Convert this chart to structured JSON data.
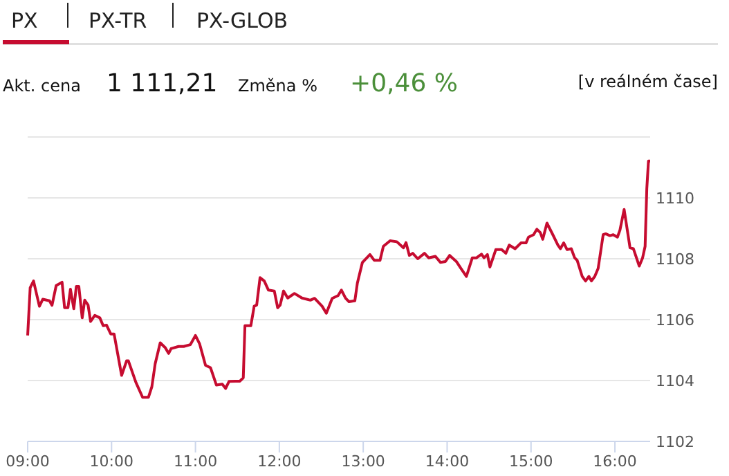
{
  "chart_data": {
    "type": "line",
    "annotations": [
      "PX",
      "PX-TR",
      "PX-GLOB",
      "Akt. cena",
      "1 111,21",
      "Změna %",
      "+0,46 %",
      "[v reálném čase]"
    ],
    "x": [
      9.0,
      9.03,
      9.07,
      9.14,
      9.18,
      9.26,
      9.29,
      9.34,
      9.41,
      9.44,
      9.48,
      9.51,
      9.55,
      9.58,
      9.61,
      9.65,
      9.68,
      9.72,
      9.75,
      9.8,
      9.86,
      9.9,
      9.94,
      9.99,
      10.03,
      10.12,
      10.18,
      10.2,
      10.29,
      10.37,
      10.44,
      10.48,
      10.52,
      10.58,
      10.64,
      10.68,
      10.71,
      10.8,
      10.86,
      10.94,
      11.0,
      11.05,
      11.12,
      11.18,
      11.25,
      11.32,
      11.36,
      11.4,
      11.48,
      11.53,
      11.57,
      11.59,
      11.66,
      11.7,
      11.73,
      11.77,
      11.82,
      11.87,
      11.94,
      11.98,
      12.01,
      12.05,
      12.1,
      12.18,
      12.27,
      12.37,
      12.42,
      12.51,
      12.56,
      12.63,
      12.7,
      12.74,
      12.79,
      12.83,
      12.9,
      12.93,
      12.99,
      13.08,
      13.13,
      13.2,
      13.24,
      13.32,
      13.4,
      13.48,
      13.51,
      13.55,
      13.59,
      13.65,
      13.73,
      13.78,
      13.86,
      13.92,
      13.98,
      14.03,
      14.11,
      14.16,
      14.23,
      14.3,
      14.35,
      14.41,
      14.44,
      14.48,
      14.51,
      14.58,
      14.65,
      14.7,
      14.74,
      14.81,
      14.88,
      14.94,
      14.97,
      15.03,
      15.07,
      15.11,
      15.14,
      15.19,
      15.26,
      15.32,
      15.35,
      15.39,
      15.43,
      15.48,
      15.52,
      15.55,
      15.61,
      15.65,
      15.69,
      15.72,
      15.76,
      15.8,
      15.86,
      15.89,
      15.94,
      15.98,
      16.03,
      16.06,
      16.11,
      16.18,
      16.22,
      16.29,
      16.33,
      16.36,
      16.38,
      16.4,
      16.42
    ],
    "series": [
      {
        "color": "#c60c30",
        "values": [
          1105.48,
          1107.05,
          1107.27,
          1106.44,
          1106.67,
          1106.62,
          1106.47,
          1107.12,
          1107.23,
          1106.39,
          1106.39,
          1107.0,
          1106.36,
          1107.09,
          1107.09,
          1106.06,
          1106.64,
          1106.48,
          1105.94,
          1106.14,
          1106.06,
          1105.8,
          1105.82,
          1105.53,
          1105.53,
          1104.17,
          1104.65,
          1104.65,
          1103.94,
          1103.45,
          1103.45,
          1103.79,
          1104.55,
          1105.24,
          1105.08,
          1104.89,
          1105.05,
          1105.12,
          1105.12,
          1105.18,
          1105.48,
          1105.2,
          1104.5,
          1104.42,
          1103.85,
          1103.88,
          1103.74,
          1103.97,
          1103.98,
          1103.98,
          1104.09,
          1105.8,
          1105.8,
          1106.44,
          1106.48,
          1107.38,
          1107.27,
          1106.97,
          1106.94,
          1106.39,
          1106.48,
          1106.94,
          1106.71,
          1106.86,
          1106.71,
          1106.64,
          1106.7,
          1106.44,
          1106.21,
          1106.7,
          1106.79,
          1106.97,
          1106.7,
          1106.59,
          1106.62,
          1107.2,
          1107.88,
          1108.14,
          1107.95,
          1107.95,
          1108.41,
          1108.59,
          1108.56,
          1108.36,
          1108.53,
          1108.11,
          1108.18,
          1108.0,
          1108.18,
          1108.03,
          1108.08,
          1107.88,
          1107.91,
          1108.11,
          1107.91,
          1107.7,
          1107.42,
          1108.03,
          1108.03,
          1108.15,
          1108.03,
          1108.14,
          1107.73,
          1108.3,
          1108.3,
          1108.18,
          1108.45,
          1108.33,
          1108.52,
          1108.52,
          1108.71,
          1108.79,
          1108.97,
          1108.86,
          1108.64,
          1109.17,
          1108.79,
          1108.45,
          1108.33,
          1108.52,
          1108.3,
          1108.33,
          1108.03,
          1107.95,
          1107.42,
          1107.27,
          1107.42,
          1107.27,
          1107.42,
          1107.68,
          1108.79,
          1108.82,
          1108.76,
          1108.79,
          1108.71,
          1108.94,
          1109.62,
          1108.36,
          1108.33,
          1107.76,
          1108.03,
          1108.41,
          1110.3,
          1111.21,
          1111.21
        ]
      }
    ],
    "xlim": [
      9,
      16.42
    ],
    "xticks": [
      {
        "value": 9,
        "label": "09:00"
      },
      {
        "value": 10,
        "label": "10:00"
      },
      {
        "value": 11,
        "label": "11:00"
      },
      {
        "value": 12,
        "label": "12:00"
      },
      {
        "value": 13,
        "label": "13:00"
      },
      {
        "value": 14,
        "label": "14:00"
      },
      {
        "value": 15,
        "label": "15:00"
      },
      {
        "value": 16,
        "label": "16:00"
      }
    ],
    "ylim": [
      1102,
      1112
    ],
    "yticks": [
      1102,
      1104,
      1106,
      1108,
      {
        "value": 1110,
        "label": "1110"
      },
      {
        "value": 1112,
        "label": null
      }
    ],
    "grid": "y",
    "marker": "none",
    "line_style": "solid"
  }
}
